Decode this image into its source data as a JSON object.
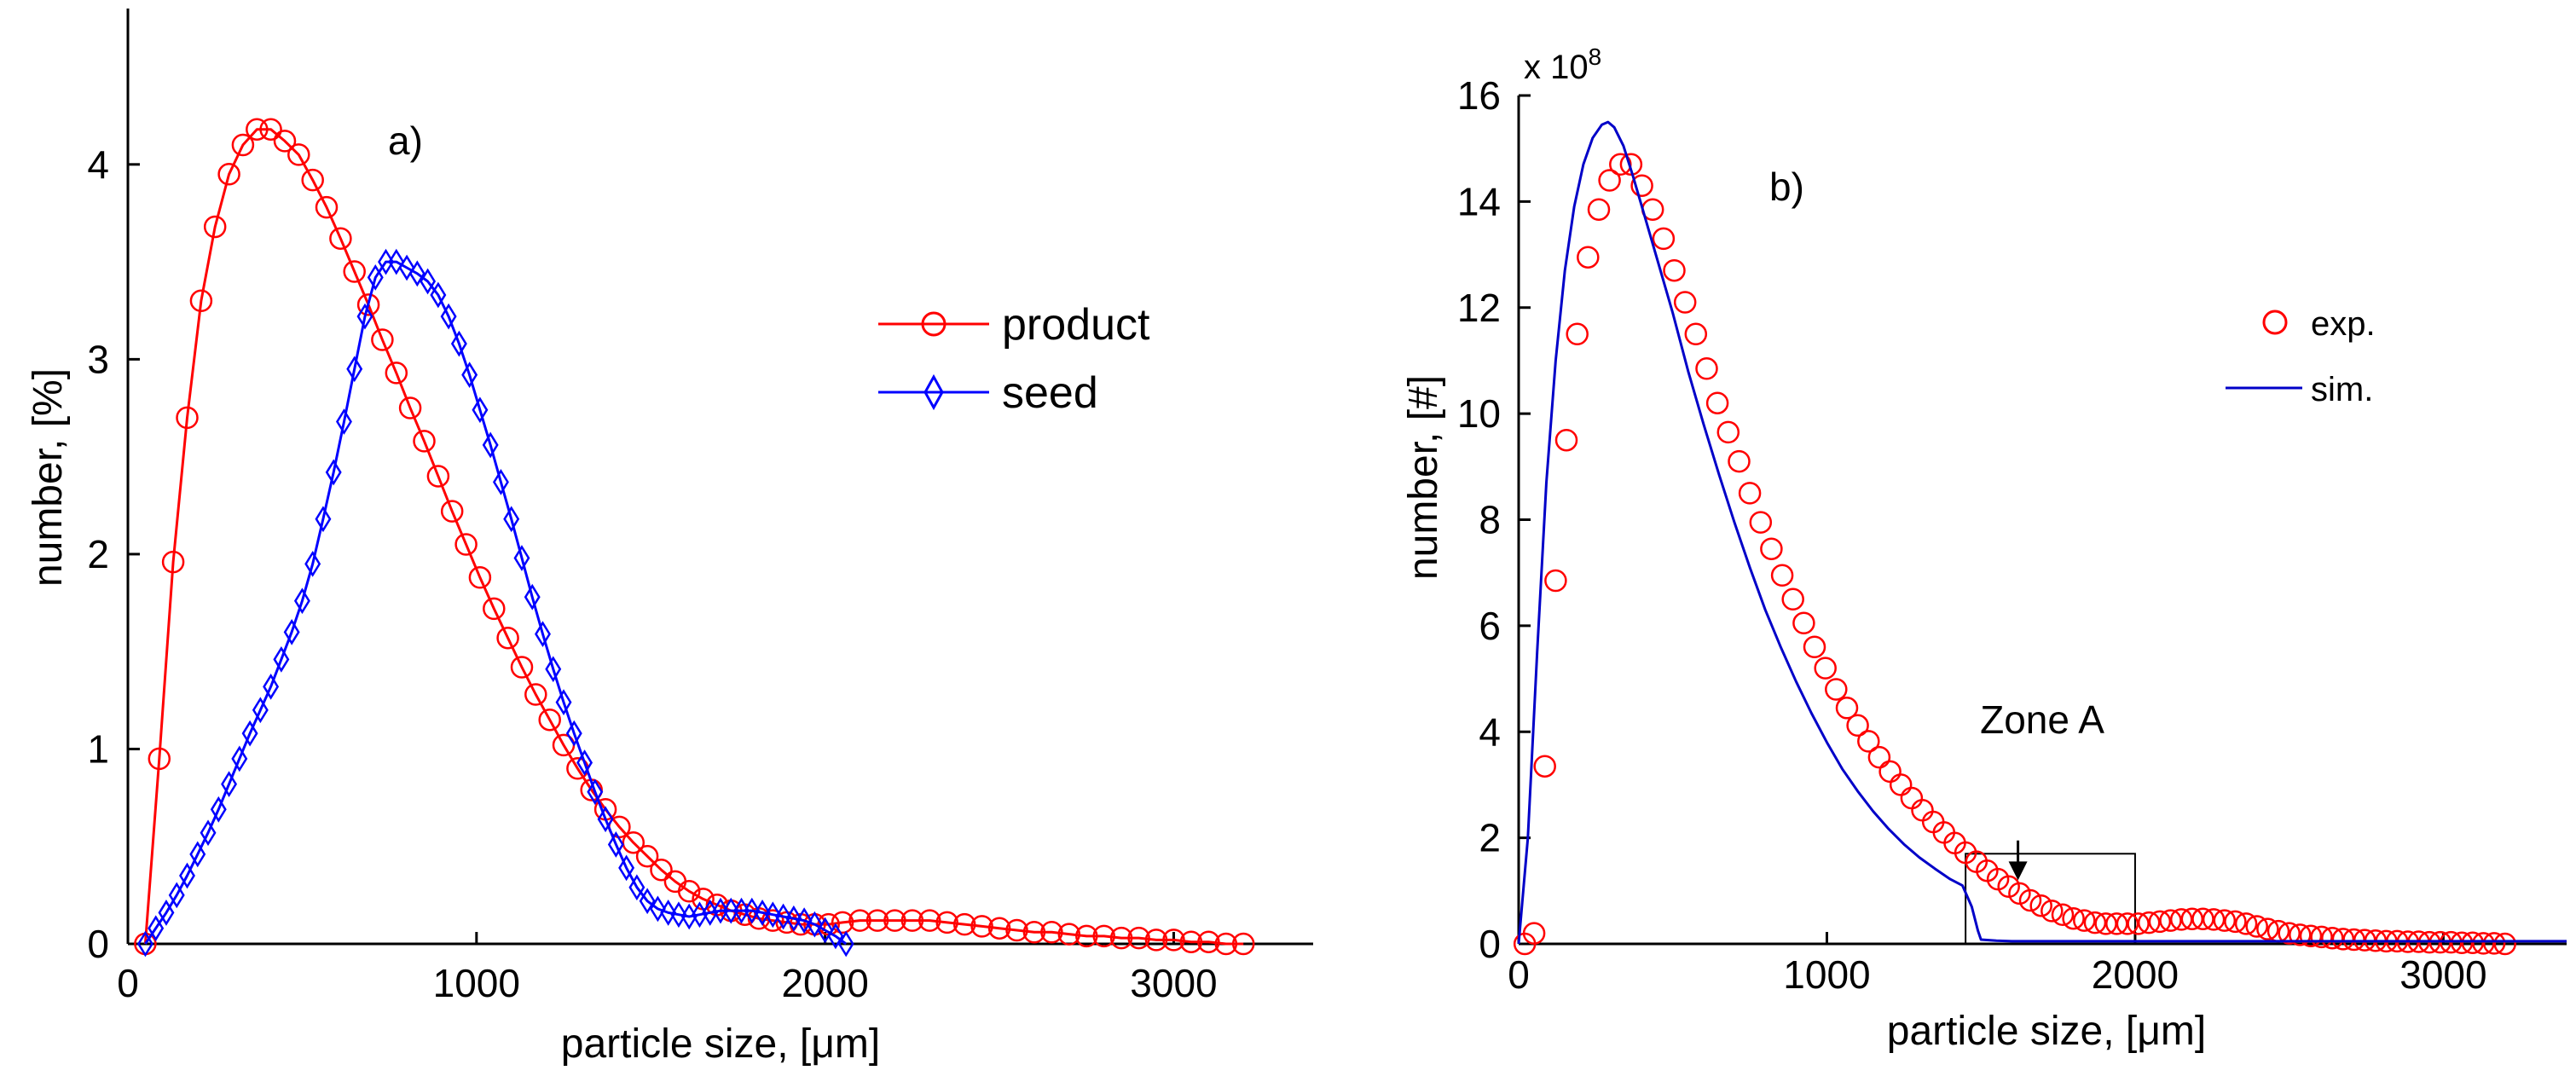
{
  "chart_data": [
    {
      "id": "a",
      "type": "line",
      "panel_label": "a)",
      "xlabel_prefix": "particle size, [",
      "xlabel_unit": "μm",
      "xlabel_suffix": "]",
      "ylabel": "number, [%]",
      "xlim": [
        0,
        3400
      ],
      "ylim": [
        0,
        4.8
      ],
      "xticks": [
        0,
        1000,
        2000,
        3000
      ],
      "yticks": [
        0,
        1,
        2,
        3,
        4
      ],
      "legend_position": "right-middle",
      "series": [
        {
          "name": "product",
          "color": "#ff0000",
          "marker": "circle",
          "x": [
            50,
            90,
            130,
            170,
            210,
            250,
            290,
            330,
            370,
            410,
            450,
            490,
            530,
            570,
            610,
            650,
            690,
            730,
            770,
            810,
            850,
            890,
            930,
            970,
            1010,
            1050,
            1090,
            1130,
            1170,
            1210,
            1250,
            1290,
            1330,
            1370,
            1410,
            1450,
            1490,
            1530,
            1570,
            1610,
            1650,
            1690,
            1730,
            1770,
            1810,
            1850,
            1890,
            1930,
            1970,
            2010,
            2050,
            2100,
            2150,
            2200,
            2250,
            2300,
            2350,
            2400,
            2450,
            2500,
            2550,
            2600,
            2650,
            2700,
            2750,
            2800,
            2850,
            2900,
            2950,
            3000,
            3050,
            3100,
            3150,
            3200
          ],
          "values": [
            0.0,
            0.95,
            1.96,
            2.7,
            3.3,
            3.68,
            3.95,
            4.1,
            4.18,
            4.18,
            4.12,
            4.05,
            3.92,
            3.78,
            3.62,
            3.45,
            3.28,
            3.1,
            2.93,
            2.75,
            2.58,
            2.4,
            2.22,
            2.05,
            1.88,
            1.72,
            1.57,
            1.42,
            1.28,
            1.15,
            1.02,
            0.9,
            0.79,
            0.69,
            0.6,
            0.52,
            0.45,
            0.38,
            0.32,
            0.27,
            0.23,
            0.2,
            0.17,
            0.15,
            0.13,
            0.12,
            0.11,
            0.1,
            0.1,
            0.1,
            0.11,
            0.12,
            0.12,
            0.12,
            0.12,
            0.12,
            0.11,
            0.1,
            0.09,
            0.08,
            0.07,
            0.06,
            0.06,
            0.05,
            0.04,
            0.04,
            0.03,
            0.03,
            0.02,
            0.02,
            0.01,
            0.01,
            0.0,
            0.0
          ]
        },
        {
          "name": "seed",
          "color": "#0000ff",
          "marker": "diamond",
          "x": [
            50,
            80,
            110,
            140,
            170,
            200,
            230,
            260,
            290,
            320,
            350,
            380,
            410,
            440,
            470,
            500,
            530,
            560,
            590,
            620,
            650,
            680,
            710,
            740,
            770,
            800,
            830,
            860,
            890,
            920,
            950,
            980,
            1010,
            1040,
            1070,
            1100,
            1130,
            1160,
            1190,
            1220,
            1250,
            1280,
            1310,
            1340,
            1370,
            1400,
            1430,
            1460,
            1490,
            1520,
            1550,
            1580,
            1610,
            1640,
            1670,
            1700,
            1730,
            1760,
            1790,
            1820,
            1850,
            1880,
            1910,
            1940,
            1970,
            2000,
            2030,
            2060
          ],
          "values": [
            0.0,
            0.08,
            0.16,
            0.25,
            0.35,
            0.46,
            0.57,
            0.69,
            0.82,
            0.95,
            1.08,
            1.2,
            1.32,
            1.46,
            1.6,
            1.76,
            1.95,
            2.18,
            2.42,
            2.68,
            2.95,
            3.22,
            3.42,
            3.5,
            3.5,
            3.47,
            3.44,
            3.4,
            3.33,
            3.22,
            3.08,
            2.92,
            2.74,
            2.56,
            2.37,
            2.18,
            1.98,
            1.78,
            1.59,
            1.41,
            1.24,
            1.08,
            0.93,
            0.78,
            0.64,
            0.51,
            0.39,
            0.29,
            0.22,
            0.18,
            0.16,
            0.15,
            0.14,
            0.15,
            0.16,
            0.17,
            0.17,
            0.17,
            0.17,
            0.16,
            0.15,
            0.14,
            0.13,
            0.12,
            0.1,
            0.07,
            0.04,
            0.0
          ]
        }
      ]
    },
    {
      "id": "b",
      "type": "line",
      "panel_label": "b)",
      "xlabel_prefix": "particle size, [",
      "xlabel_unit": "μm",
      "xlabel_suffix": "]",
      "ylabel": "number, [#]",
      "y_multiplier_base": "x 10",
      "y_multiplier_exp": "8",
      "xlim": [
        0,
        3400
      ],
      "ylim": [
        0,
        16
      ],
      "xticks": [
        0,
        1000,
        2000,
        3000
      ],
      "yticks": [
        0,
        2,
        4,
        6,
        8,
        10,
        12,
        14,
        16
      ],
      "legend_position": "right-middle",
      "annotation": {
        "text": "Zone A",
        "box_x": [
          1450,
          2000
        ],
        "box_y": [
          0,
          1.7
        ],
        "arrow_x": 1620,
        "arrow_y_from": 1.95,
        "arrow_y_to": 1.2
      },
      "series": [
        {
          "name": "exp.",
          "color": "#ff0000",
          "marker": "circle",
          "line": false,
          "x": [
            20,
            50,
            85,
            120,
            155,
            190,
            225,
            260,
            295,
            330,
            365,
            400,
            435,
            470,
            505,
            540,
            575,
            610,
            645,
            680,
            715,
            750,
            785,
            820,
            855,
            890,
            925,
            960,
            995,
            1030,
            1065,
            1100,
            1135,
            1170,
            1205,
            1240,
            1275,
            1310,
            1345,
            1380,
            1415,
            1450,
            1485,
            1520,
            1555,
            1590,
            1625,
            1660,
            1695,
            1730,
            1765,
            1800,
            1835,
            1870,
            1905,
            1940,
            1975,
            2010,
            2045,
            2080,
            2115,
            2150,
            2185,
            2220,
            2255,
            2290,
            2325,
            2360,
            2395,
            2430,
            2465,
            2500,
            2535,
            2570,
            2605,
            2640,
            2675,
            2710,
            2745,
            2780,
            2815,
            2850,
            2885,
            2920,
            2955,
            2990,
            3025,
            3060,
            3095,
            3130,
            3165,
            3200
          ],
          "values": [
            0.0,
            0.2,
            3.35,
            6.85,
            9.5,
            11.5,
            12.95,
            13.85,
            14.4,
            14.7,
            14.7,
            14.3,
            13.85,
            13.3,
            12.7,
            12.1,
            11.5,
            10.85,
            10.2,
            9.65,
            9.1,
            8.5,
            7.95,
            7.45,
            6.95,
            6.5,
            6.05,
            5.6,
            5.2,
            4.8,
            4.45,
            4.12,
            3.82,
            3.52,
            3.25,
            3.0,
            2.75,
            2.52,
            2.3,
            2.1,
            1.9,
            1.72,
            1.55,
            1.38,
            1.22,
            1.08,
            0.95,
            0.82,
            0.72,
            0.62,
            0.55,
            0.48,
            0.44,
            0.4,
            0.38,
            0.38,
            0.38,
            0.38,
            0.4,
            0.42,
            0.44,
            0.46,
            0.47,
            0.47,
            0.46,
            0.44,
            0.42,
            0.38,
            0.33,
            0.28,
            0.24,
            0.2,
            0.17,
            0.15,
            0.13,
            0.11,
            0.09,
            0.08,
            0.07,
            0.06,
            0.05,
            0.05,
            0.04,
            0.04,
            0.03,
            0.03,
            0.03,
            0.02,
            0.02,
            0.01,
            0.01,
            0.0
          ]
        },
        {
          "name": "sim.",
          "color": "#0000c8",
          "marker": "none",
          "line": true,
          "x": [
            0,
            30,
            60,
            90,
            120,
            150,
            180,
            210,
            240,
            270,
            290,
            310,
            340,
            370,
            400,
            450,
            500,
            550,
            600,
            650,
            700,
            750,
            800,
            850,
            900,
            950,
            1000,
            1050,
            1100,
            1150,
            1200,
            1250,
            1300,
            1350,
            1400,
            1440,
            1470,
            1490,
            1500,
            1550,
            1600,
            1700,
            1800,
            1900,
            2000,
            2100,
            2200,
            2300,
            2400,
            2500,
            2600,
            2700,
            2800,
            2900,
            3000,
            3100,
            3200,
            3300,
            3400
          ],
          "values": [
            0.0,
            2.0,
            5.5,
            8.7,
            11.0,
            12.7,
            13.9,
            14.7,
            15.2,
            15.45,
            15.5,
            15.4,
            15.05,
            14.5,
            13.9,
            12.9,
            11.9,
            10.8,
            9.8,
            8.85,
            7.95,
            7.1,
            6.3,
            5.6,
            4.95,
            4.35,
            3.8,
            3.3,
            2.88,
            2.5,
            2.17,
            1.88,
            1.63,
            1.42,
            1.22,
            1.1,
            0.7,
            0.25,
            0.08,
            0.06,
            0.05,
            0.05,
            0.05,
            0.05,
            0.05,
            0.05,
            0.05,
            0.05,
            0.05,
            0.05,
            0.05,
            0.05,
            0.05,
            0.05,
            0.05,
            0.05,
            0.05,
            0.05,
            0.05
          ]
        }
      ]
    }
  ]
}
